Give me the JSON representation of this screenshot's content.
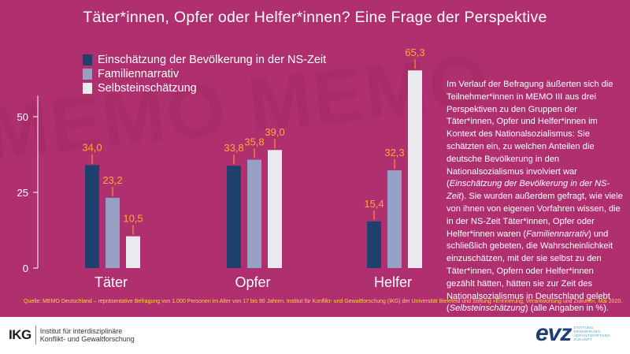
{
  "title": "Täter*innen, Opfer oder Helfer*innen? Eine Frage der Perspektive",
  "watermark": "MEMO MEMO",
  "colors": {
    "background": "#b02f6e",
    "series": [
      "#1f3f6d",
      "#95a0c4",
      "#e9e9ee"
    ],
    "value_label": "#ffaa33",
    "axis": "#ffffff",
    "source_text": "#ffd24a"
  },
  "chart_data": {
    "type": "bar",
    "title": "Täter*innen, Opfer oder Helfer*innen? Eine Frage der Perspektive",
    "categories": [
      "Täter",
      "Opfer",
      "Helfer"
    ],
    "series": [
      {
        "name": "Einschätzung der Bevölkerung in der NS-Zeit",
        "values": [
          34.0,
          33.8,
          15.4
        ],
        "labels": [
          "34,0",
          "33,8",
          "15,4"
        ]
      },
      {
        "name": "Familiennarrativ",
        "values": [
          23.2,
          35.8,
          32.3
        ],
        "labels": [
          "23,2",
          "35,8",
          "32,3"
        ]
      },
      {
        "name": "Selbsteinschätzung",
        "values": [
          10.5,
          39.0,
          65.3
        ],
        "labels": [
          "10,5",
          "39,0",
          "65,3"
        ]
      }
    ],
    "yticks": [
      0,
      25,
      50
    ],
    "ytick_labels": [
      "0",
      "25",
      "50"
    ],
    "ylim": [
      0,
      70
    ],
    "xlabel": "",
    "ylabel": "",
    "legend": "top-left",
    "grid": false
  },
  "description": {
    "part1": "Im Verlauf der Befragung äußerten sich die Teilnehmer*innen in MEMO III aus drei Perspektiven zu den Gruppen der Täter*innen, Opfer und Helfer*innen im Kontext des Nationalsozialismus: Sie schätzten ein, zu welchen Anteilen die deutsche Bevölkerung in den Nationalsozialismus involviert war (",
    "em1": "Einschätzung der Bevölkerung in der NS-Zeit",
    "part2": "). Sie wurden außerdem gefragt, wie viele von ihnen von eigenen Vorfahren wissen, die in der NS-Zeit Täter*innen, Opfer oder Helfer*innen waren (",
    "em2": "Familiennarrativ",
    "part3": ") und schließlich gebeten, die Wahrscheinlichkeit einzuschätzen, mit der sie selbst zu den Täter*innen, Opfern oder Helfer*innen gezählt hätten, hätten sie zur Zeit des Nationalsozialismus in Deutschland gelebt (",
    "em3": "Selbsteinschätzung",
    "part4": ") (alle Angaben in %)."
  },
  "source": "Quelle: MEMO Deutschland – repräsentative Befragung von 1.000 Personen im Alter von 17 bis 90 Jahren. Institut für Konflikt- und Gewaltforschung (IKG) der Universität Bielefeld und Stiftung »Erinnerung, Verantwortung und Zukunft«, Mai 2020.",
  "footer": {
    "ikg_mark": "IKG",
    "ikg_line1": "Institut für interdisziplinäre",
    "ikg_line2": "Konflikt- und Gewaltforschung",
    "evz_mark": "evz",
    "evz_sub1": "STIFTUNG",
    "evz_sub2": "ERINNERUNG",
    "evz_sub3": "VERANTWORTUNG",
    "evz_sub4": "ZUKUNFT"
  }
}
